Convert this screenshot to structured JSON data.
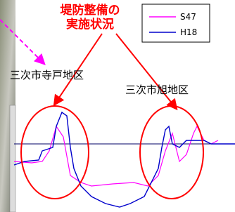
{
  "annotation": [
    "堤防整備の",
    "実施状況"
  ],
  "legend": [
    {
      "name": "S47",
      "color": "#ff00ff"
    },
    {
      "name": "H18",
      "color": "#0000cc"
    }
  ],
  "labels": [
    "三次市寺戸地区",
    "三次市旭地区"
  ]
}
